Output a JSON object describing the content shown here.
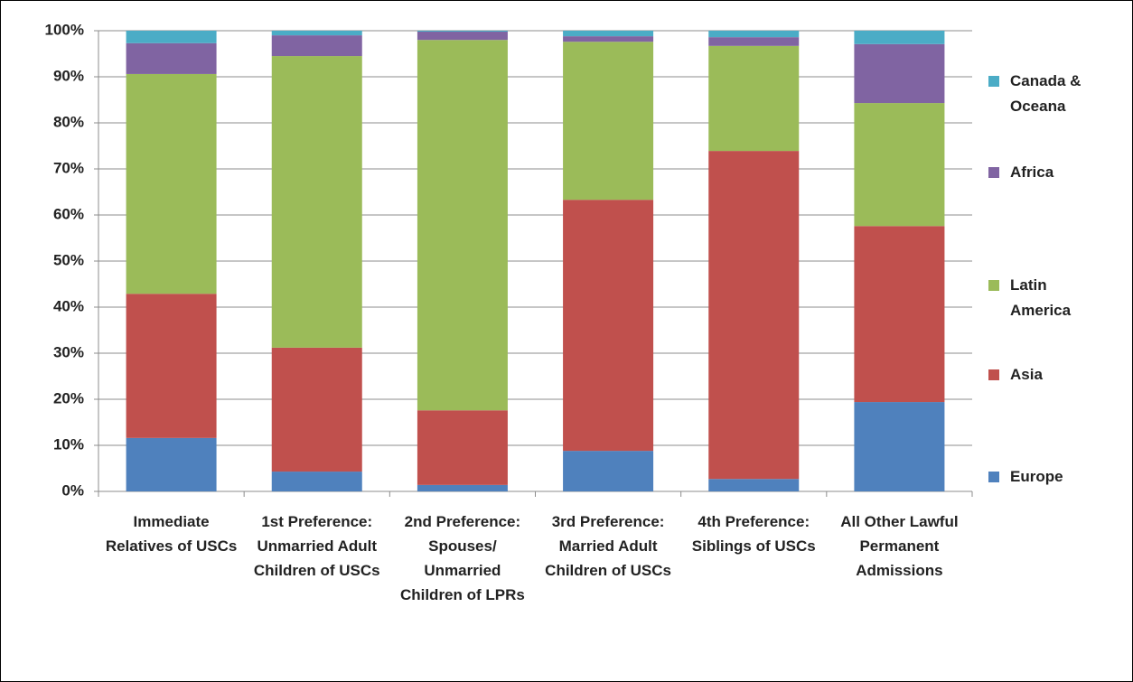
{
  "chart_data": {
    "type": "stacked_bar_percent",
    "categories": [
      "Immediate Relatives of USCs",
      "1st Preference: Unmarried Adult Children of USCs",
      "2nd Preference: Spouses/ Unmarried Children of LPRs",
      "3rd Preference: Married Adult Children of USCs",
      "4th Preference: Siblings of USCs",
      "All Other Lawful Permanent Admissions"
    ],
    "series": [
      {
        "name": "Europe",
        "color": "#4f81bd",
        "values": [
          11.6,
          4.3,
          1.4,
          8.8,
          2.7,
          19.4
        ]
      },
      {
        "name": "Asia",
        "color": "#c0504d",
        "values": [
          31.3,
          26.9,
          16.2,
          54.5,
          71.2,
          38.2
        ]
      },
      {
        "name": "Latin America",
        "color": "#9bbb59",
        "values": [
          47.7,
          63.3,
          80.4,
          34.3,
          22.8,
          26.7
        ]
      },
      {
        "name": "Africa",
        "color": "#8064a2",
        "values": [
          6.7,
          4.5,
          1.8,
          1.2,
          1.9,
          12.8
        ]
      },
      {
        "name": "Canada & Oceana",
        "color": "#4bacc6",
        "values": [
          2.7,
          1.0,
          0.2,
          1.2,
          1.4,
          2.9
        ]
      }
    ],
    "ylim": [
      0,
      100
    ],
    "yticks": [
      {
        "value": 0,
        "label": "0%"
      },
      {
        "value": 10,
        "label": "10%"
      },
      {
        "value": 20,
        "label": "20%"
      },
      {
        "value": 30,
        "label": "30%"
      },
      {
        "value": 40,
        "label": "40%"
      },
      {
        "value": 50,
        "label": "50%"
      },
      {
        "value": 60,
        "label": "60%"
      },
      {
        "value": 70,
        "label": "70%"
      },
      {
        "value": 80,
        "label": "80%"
      },
      {
        "value": 90,
        "label": "90%"
      },
      {
        "value": 100,
        "label": "100%"
      }
    ],
    "grid": true
  }
}
